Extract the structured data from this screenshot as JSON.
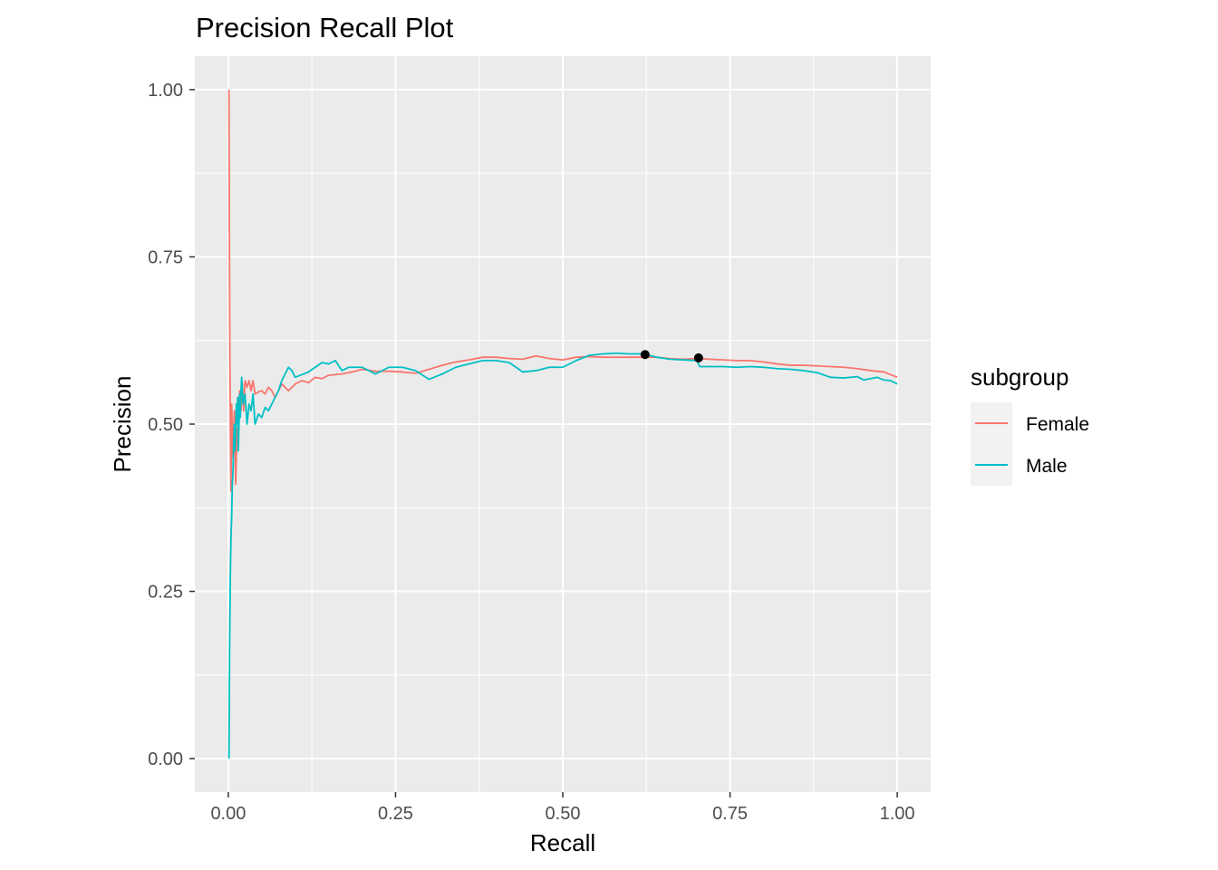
{
  "chart_data": {
    "type": "line",
    "title": "Precision Recall Plot",
    "xlabel": "Recall",
    "ylabel": "Precision",
    "xlim": [
      -0.05,
      1.05
    ],
    "ylim": [
      -0.05,
      1.05
    ],
    "x_ticks": [
      0,
      0.25,
      0.5,
      0.75,
      1
    ],
    "x_tick_labels": [
      "0.00",
      "0.25",
      "0.50",
      "0.75",
      "1.00"
    ],
    "y_ticks": [
      0,
      0.25,
      0.5,
      0.75,
      1
    ],
    "y_tick_labels": [
      "0.00",
      "0.25",
      "0.50",
      "0.75",
      "1.00"
    ],
    "grid": true,
    "legend": {
      "title": "subgroup",
      "position": "right"
    },
    "series": [
      {
        "name": "Female",
        "color": "#F8766D",
        "points": [
          [
            0.001,
            1.0
          ],
          [
            0.002,
            0.67
          ],
          [
            0.003,
            0.5
          ],
          [
            0.004,
            0.4
          ],
          [
            0.005,
            0.53
          ],
          [
            0.007,
            0.45
          ],
          [
            0.009,
            0.52
          ],
          [
            0.011,
            0.41
          ],
          [
            0.013,
            0.49
          ],
          [
            0.015,
            0.5
          ],
          [
            0.017,
            0.55
          ],
          [
            0.019,
            0.52
          ],
          [
            0.021,
            0.56
          ],
          [
            0.023,
            0.52
          ],
          [
            0.025,
            0.565
          ],
          [
            0.028,
            0.555
          ],
          [
            0.031,
            0.565
          ],
          [
            0.034,
            0.55
          ],
          [
            0.037,
            0.565
          ],
          [
            0.04,
            0.545
          ],
          [
            0.045,
            0.548
          ],
          [
            0.05,
            0.55
          ],
          [
            0.055,
            0.545
          ],
          [
            0.06,
            0.555
          ],
          [
            0.065,
            0.55
          ],
          [
            0.07,
            0.54
          ],
          [
            0.075,
            0.55
          ],
          [
            0.08,
            0.56
          ],
          [
            0.09,
            0.55
          ],
          [
            0.1,
            0.56
          ],
          [
            0.11,
            0.565
          ],
          [
            0.12,
            0.562
          ],
          [
            0.13,
            0.57
          ],
          [
            0.14,
            0.568
          ],
          [
            0.15,
            0.573
          ],
          [
            0.17,
            0.575
          ],
          [
            0.19,
            0.579
          ],
          [
            0.2,
            0.582
          ],
          [
            0.22,
            0.579
          ],
          [
            0.24,
            0.579
          ],
          [
            0.26,
            0.578
          ],
          [
            0.28,
            0.576
          ],
          [
            0.3,
            0.582
          ],
          [
            0.32,
            0.588
          ],
          [
            0.34,
            0.593
          ],
          [
            0.36,
            0.596
          ],
          [
            0.38,
            0.6
          ],
          [
            0.4,
            0.6
          ],
          [
            0.42,
            0.598
          ],
          [
            0.44,
            0.597
          ],
          [
            0.46,
            0.602
          ],
          [
            0.48,
            0.598
          ],
          [
            0.5,
            0.596
          ],
          [
            0.52,
            0.6
          ],
          [
            0.54,
            0.601
          ],
          [
            0.56,
            0.6
          ],
          [
            0.58,
            0.6
          ],
          [
            0.6,
            0.6
          ],
          [
            0.62,
            0.6
          ],
          [
            0.64,
            0.6
          ],
          [
            0.66,
            0.598
          ],
          [
            0.68,
            0.597
          ],
          [
            0.7,
            0.598
          ],
          [
            0.72,
            0.597
          ],
          [
            0.74,
            0.596
          ],
          [
            0.76,
            0.595
          ],
          [
            0.78,
            0.595
          ],
          [
            0.8,
            0.593
          ],
          [
            0.82,
            0.59
          ],
          [
            0.84,
            0.588
          ],
          [
            0.86,
            0.588
          ],
          [
            0.88,
            0.587
          ],
          [
            0.9,
            0.586
          ],
          [
            0.92,
            0.585
          ],
          [
            0.94,
            0.583
          ],
          [
            0.96,
            0.58
          ],
          [
            0.98,
            0.578
          ],
          [
            1.0,
            0.57
          ]
        ]
      },
      {
        "name": "Male",
        "color": "#00BFC4",
        "points": [
          [
            0.001,
            0.0
          ],
          [
            0.002,
            0.17
          ],
          [
            0.003,
            0.27
          ],
          [
            0.004,
            0.33
          ],
          [
            0.005,
            0.36
          ],
          [
            0.006,
            0.41
          ],
          [
            0.007,
            0.43
          ],
          [
            0.008,
            0.47
          ],
          [
            0.009,
            0.5
          ],
          [
            0.01,
            0.46
          ],
          [
            0.011,
            0.49
          ],
          [
            0.012,
            0.53
          ],
          [
            0.013,
            0.5
          ],
          [
            0.014,
            0.54
          ],
          [
            0.015,
            0.46
          ],
          [
            0.016,
            0.5
          ],
          [
            0.017,
            0.545
          ],
          [
            0.018,
            0.51
          ],
          [
            0.019,
            0.55
          ],
          [
            0.02,
            0.57
          ],
          [
            0.022,
            0.53
          ],
          [
            0.025,
            0.545
          ],
          [
            0.028,
            0.5
          ],
          [
            0.031,
            0.53
          ],
          [
            0.034,
            0.52
          ],
          [
            0.037,
            0.545
          ],
          [
            0.04,
            0.5
          ],
          [
            0.045,
            0.515
          ],
          [
            0.05,
            0.51
          ],
          [
            0.055,
            0.525
          ],
          [
            0.06,
            0.52
          ],
          [
            0.07,
            0.54
          ],
          [
            0.075,
            0.55
          ],
          [
            0.08,
            0.565
          ],
          [
            0.085,
            0.575
          ],
          [
            0.09,
            0.585
          ],
          [
            0.095,
            0.58
          ],
          [
            0.1,
            0.57
          ],
          [
            0.12,
            0.578
          ],
          [
            0.13,
            0.585
          ],
          [
            0.14,
            0.592
          ],
          [
            0.15,
            0.59
          ],
          [
            0.16,
            0.595
          ],
          [
            0.17,
            0.58
          ],
          [
            0.18,
            0.585
          ],
          [
            0.2,
            0.585
          ],
          [
            0.21,
            0.58
          ],
          [
            0.22,
            0.575
          ],
          [
            0.24,
            0.585
          ],
          [
            0.26,
            0.585
          ],
          [
            0.28,
            0.58
          ],
          [
            0.3,
            0.567
          ],
          [
            0.32,
            0.575
          ],
          [
            0.34,
            0.585
          ],
          [
            0.36,
            0.59
          ],
          [
            0.38,
            0.595
          ],
          [
            0.4,
            0.595
          ],
          [
            0.42,
            0.592
          ],
          [
            0.44,
            0.578
          ],
          [
            0.46,
            0.58
          ],
          [
            0.48,
            0.585
          ],
          [
            0.5,
            0.585
          ],
          [
            0.52,
            0.595
          ],
          [
            0.54,
            0.603
          ],
          [
            0.56,
            0.605
          ],
          [
            0.58,
            0.606
          ],
          [
            0.6,
            0.605
          ],
          [
            0.62,
            0.605
          ],
          [
            0.64,
            0.6
          ],
          [
            0.66,
            0.597
          ],
          [
            0.68,
            0.596
          ],
          [
            0.7,
            0.595
          ],
          [
            0.705,
            0.586
          ],
          [
            0.72,
            0.586
          ],
          [
            0.74,
            0.586
          ],
          [
            0.76,
            0.585
          ],
          [
            0.78,
            0.586
          ],
          [
            0.8,
            0.585
          ],
          [
            0.82,
            0.583
          ],
          [
            0.84,
            0.582
          ],
          [
            0.86,
            0.58
          ],
          [
            0.88,
            0.577
          ],
          [
            0.9,
            0.57
          ],
          [
            0.92,
            0.569
          ],
          [
            0.94,
            0.571
          ],
          [
            0.95,
            0.566
          ],
          [
            0.97,
            0.57
          ],
          [
            0.98,
            0.566
          ],
          [
            0.99,
            0.565
          ],
          [
            1.0,
            0.56
          ]
        ]
      }
    ],
    "highlight_points": [
      [
        0.623,
        0.604
      ],
      [
        0.703,
        0.599
      ]
    ]
  }
}
